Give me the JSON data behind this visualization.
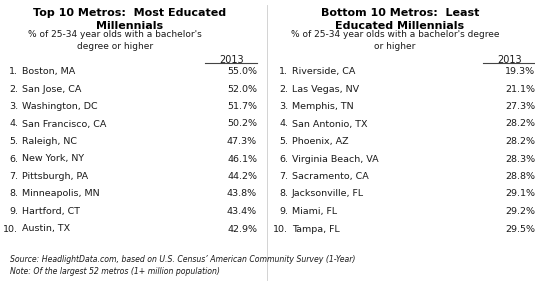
{
  "left_title": "Top 10 Metros:  Most Educated\nMillennials",
  "right_title": "Bottom 10 Metros:  Least\nEducated Millennials",
  "left_subtitle": "% of 25-34 year olds with a bachelor's\ndegree or higher",
  "right_subtitle": "% of 25-34 year olds with a bachelor's degree\nor higher",
  "col_header": "2013",
  "left_data": [
    [
      "1.",
      "Boston, MA",
      "55.0%"
    ],
    [
      "2.",
      "San Jose, CA",
      "52.0%"
    ],
    [
      "3.",
      "Washington, DC",
      "51.7%"
    ],
    [
      "4.",
      "San Francisco, CA",
      "50.2%"
    ],
    [
      "5.",
      "Raleigh, NC",
      "47.3%"
    ],
    [
      "6.",
      "New York, NY",
      "46.1%"
    ],
    [
      "7.",
      "Pittsburgh, PA",
      "44.2%"
    ],
    [
      "8.",
      "Minneapolis, MN",
      "43.8%"
    ],
    [
      "9.",
      "Hartford, CT",
      "43.4%"
    ],
    [
      "10.",
      "Austin, TX",
      "42.9%"
    ]
  ],
  "right_data": [
    [
      "1.",
      "Riverside, CA",
      "19.3%"
    ],
    [
      "2.",
      "Las Vegas, NV",
      "21.1%"
    ],
    [
      "3.",
      "Memphis, TN",
      "27.3%"
    ],
    [
      "4.",
      "San Antonio, TX",
      "28.2%"
    ],
    [
      "5.",
      "Phoenix, AZ",
      "28.2%"
    ],
    [
      "6.",
      "Virginia Beach, VA",
      "28.3%"
    ],
    [
      "7.",
      "Sacramento, CA",
      "28.8%"
    ],
    [
      "8.",
      "Jacksonville, FL",
      "29.1%"
    ],
    [
      "9.",
      "Miami, FL",
      "29.2%"
    ],
    [
      "10.",
      "Tampa, FL",
      "29.5%"
    ]
  ],
  "footnote1": "Source: HeadlightData.com, based on U.S. Census’ American Community Survey (1-Year)",
  "footnote2": "Note: Of the largest 52 metros (1+ million population)",
  "bg_color": "#ffffff",
  "text_color": "#1a1a1a",
  "title_color": "#000000",
  "line_color": "#444444",
  "divider_color": "#cccccc"
}
